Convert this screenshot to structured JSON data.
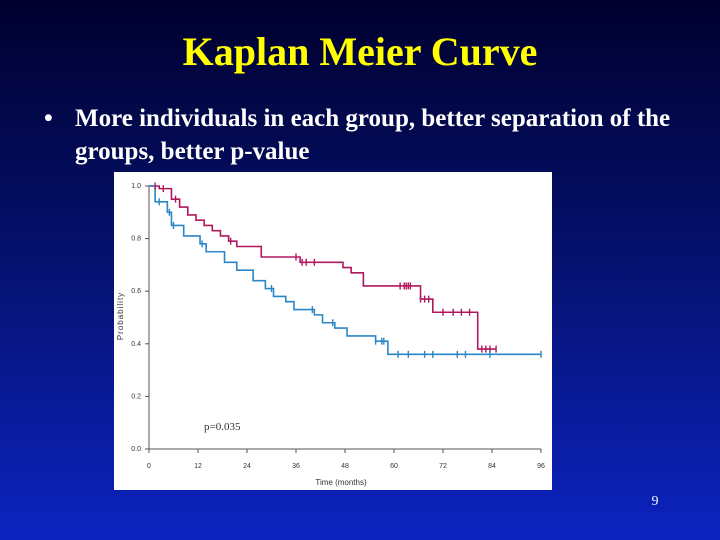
{
  "slide": {
    "title": "Kaplan Meier Curve",
    "bullet_symbol": "•",
    "bullet_text": "More individuals in each group, better separation of the groups, better p-value",
    "slide_number": "9"
  },
  "chart_data": {
    "type": "line",
    "title": "",
    "xlabel": "Time (months)",
    "ylabel": "Probability",
    "xlim": [
      0,
      96
    ],
    "ylim": [
      0,
      1.0
    ],
    "x_ticks": [
      0,
      12,
      24,
      36,
      48,
      60,
      72,
      84,
      96
    ],
    "y_ticks": [
      "0.0",
      "0.2",
      "0.4",
      "0.6",
      "0.8",
      "1.0"
    ],
    "annotation": "p=0.035",
    "grid": false,
    "legend": false,
    "series": [
      {
        "color": "#b0185e",
        "step_points": [
          [
            0,
            1.0
          ],
          [
            2,
            1.0
          ],
          [
            2.5,
            0.99
          ],
          [
            5,
            0.99
          ],
          [
            5.5,
            0.95
          ],
          [
            7,
            0.95
          ],
          [
            7.5,
            0.92
          ],
          [
            9,
            0.92
          ],
          [
            9.5,
            0.89
          ],
          [
            11,
            0.89
          ],
          [
            11.5,
            0.87
          ],
          [
            13,
            0.87
          ],
          [
            13.5,
            0.85
          ],
          [
            15,
            0.85
          ],
          [
            15.5,
            0.83
          ],
          [
            17,
            0.83
          ],
          [
            17.5,
            0.81
          ],
          [
            19,
            0.81
          ],
          [
            19.5,
            0.79
          ],
          [
            21,
            0.79
          ],
          [
            21.5,
            0.77
          ],
          [
            27,
            0.77
          ],
          [
            27.5,
            0.73
          ],
          [
            36,
            0.73
          ],
          [
            37,
            0.71
          ],
          [
            47,
            0.71
          ],
          [
            47.5,
            0.69
          ],
          [
            49,
            0.69
          ],
          [
            49.5,
            0.67
          ],
          [
            52,
            0.67
          ],
          [
            52.5,
            0.62
          ],
          [
            66,
            0.62
          ],
          [
            66.5,
            0.57
          ],
          [
            69,
            0.57
          ],
          [
            69.5,
            0.52
          ],
          [
            80,
            0.52
          ],
          [
            80.5,
            0.38
          ],
          [
            85,
            0.38
          ]
        ],
        "censor_times": [
          1.5,
          3.5,
          6.5,
          20,
          36,
          37.5,
          38.5,
          40.5,
          61.5,
          62.5,
          63,
          63.5,
          64,
          66.5,
          67.5,
          68.5,
          72,
          74.5,
          76.5,
          78.5,
          81.5,
          82.5,
          83.5,
          85
        ]
      },
      {
        "color": "#2a86c6",
        "step_points": [
          [
            0,
            1.0
          ],
          [
            1,
            1.0
          ],
          [
            1.5,
            0.94
          ],
          [
            4,
            0.94
          ],
          [
            4.5,
            0.9
          ],
          [
            5,
            0.9
          ],
          [
            5.5,
            0.85
          ],
          [
            8,
            0.85
          ],
          [
            8.5,
            0.81
          ],
          [
            12,
            0.81
          ],
          [
            12.5,
            0.78
          ],
          [
            13.5,
            0.78
          ],
          [
            14,
            0.75
          ],
          [
            18,
            0.75
          ],
          [
            18.5,
            0.71
          ],
          [
            21,
            0.71
          ],
          [
            21.5,
            0.68
          ],
          [
            25,
            0.68
          ],
          [
            25.5,
            0.64
          ],
          [
            28,
            0.64
          ],
          [
            28.5,
            0.61
          ],
          [
            30,
            0.61
          ],
          [
            30.5,
            0.58
          ],
          [
            33,
            0.58
          ],
          [
            33.5,
            0.56
          ],
          [
            35,
            0.56
          ],
          [
            35.5,
            0.53
          ],
          [
            40,
            0.53
          ],
          [
            40.5,
            0.51
          ],
          [
            42,
            0.51
          ],
          [
            42.5,
            0.48
          ],
          [
            45,
            0.48
          ],
          [
            45.5,
            0.46
          ],
          [
            48,
            0.46
          ],
          [
            48.5,
            0.43
          ],
          [
            55,
            0.43
          ],
          [
            55.5,
            0.41
          ],
          [
            58,
            0.41
          ],
          [
            58.5,
            0.36
          ],
          [
            96,
            0.36
          ]
        ],
        "censor_times": [
          2.5,
          5,
          6,
          13,
          30,
          40,
          45,
          55.5,
          57,
          57.5,
          61,
          63.5,
          67.5,
          69.5,
          75.5,
          77.5,
          83.5,
          96
        ]
      }
    ]
  }
}
